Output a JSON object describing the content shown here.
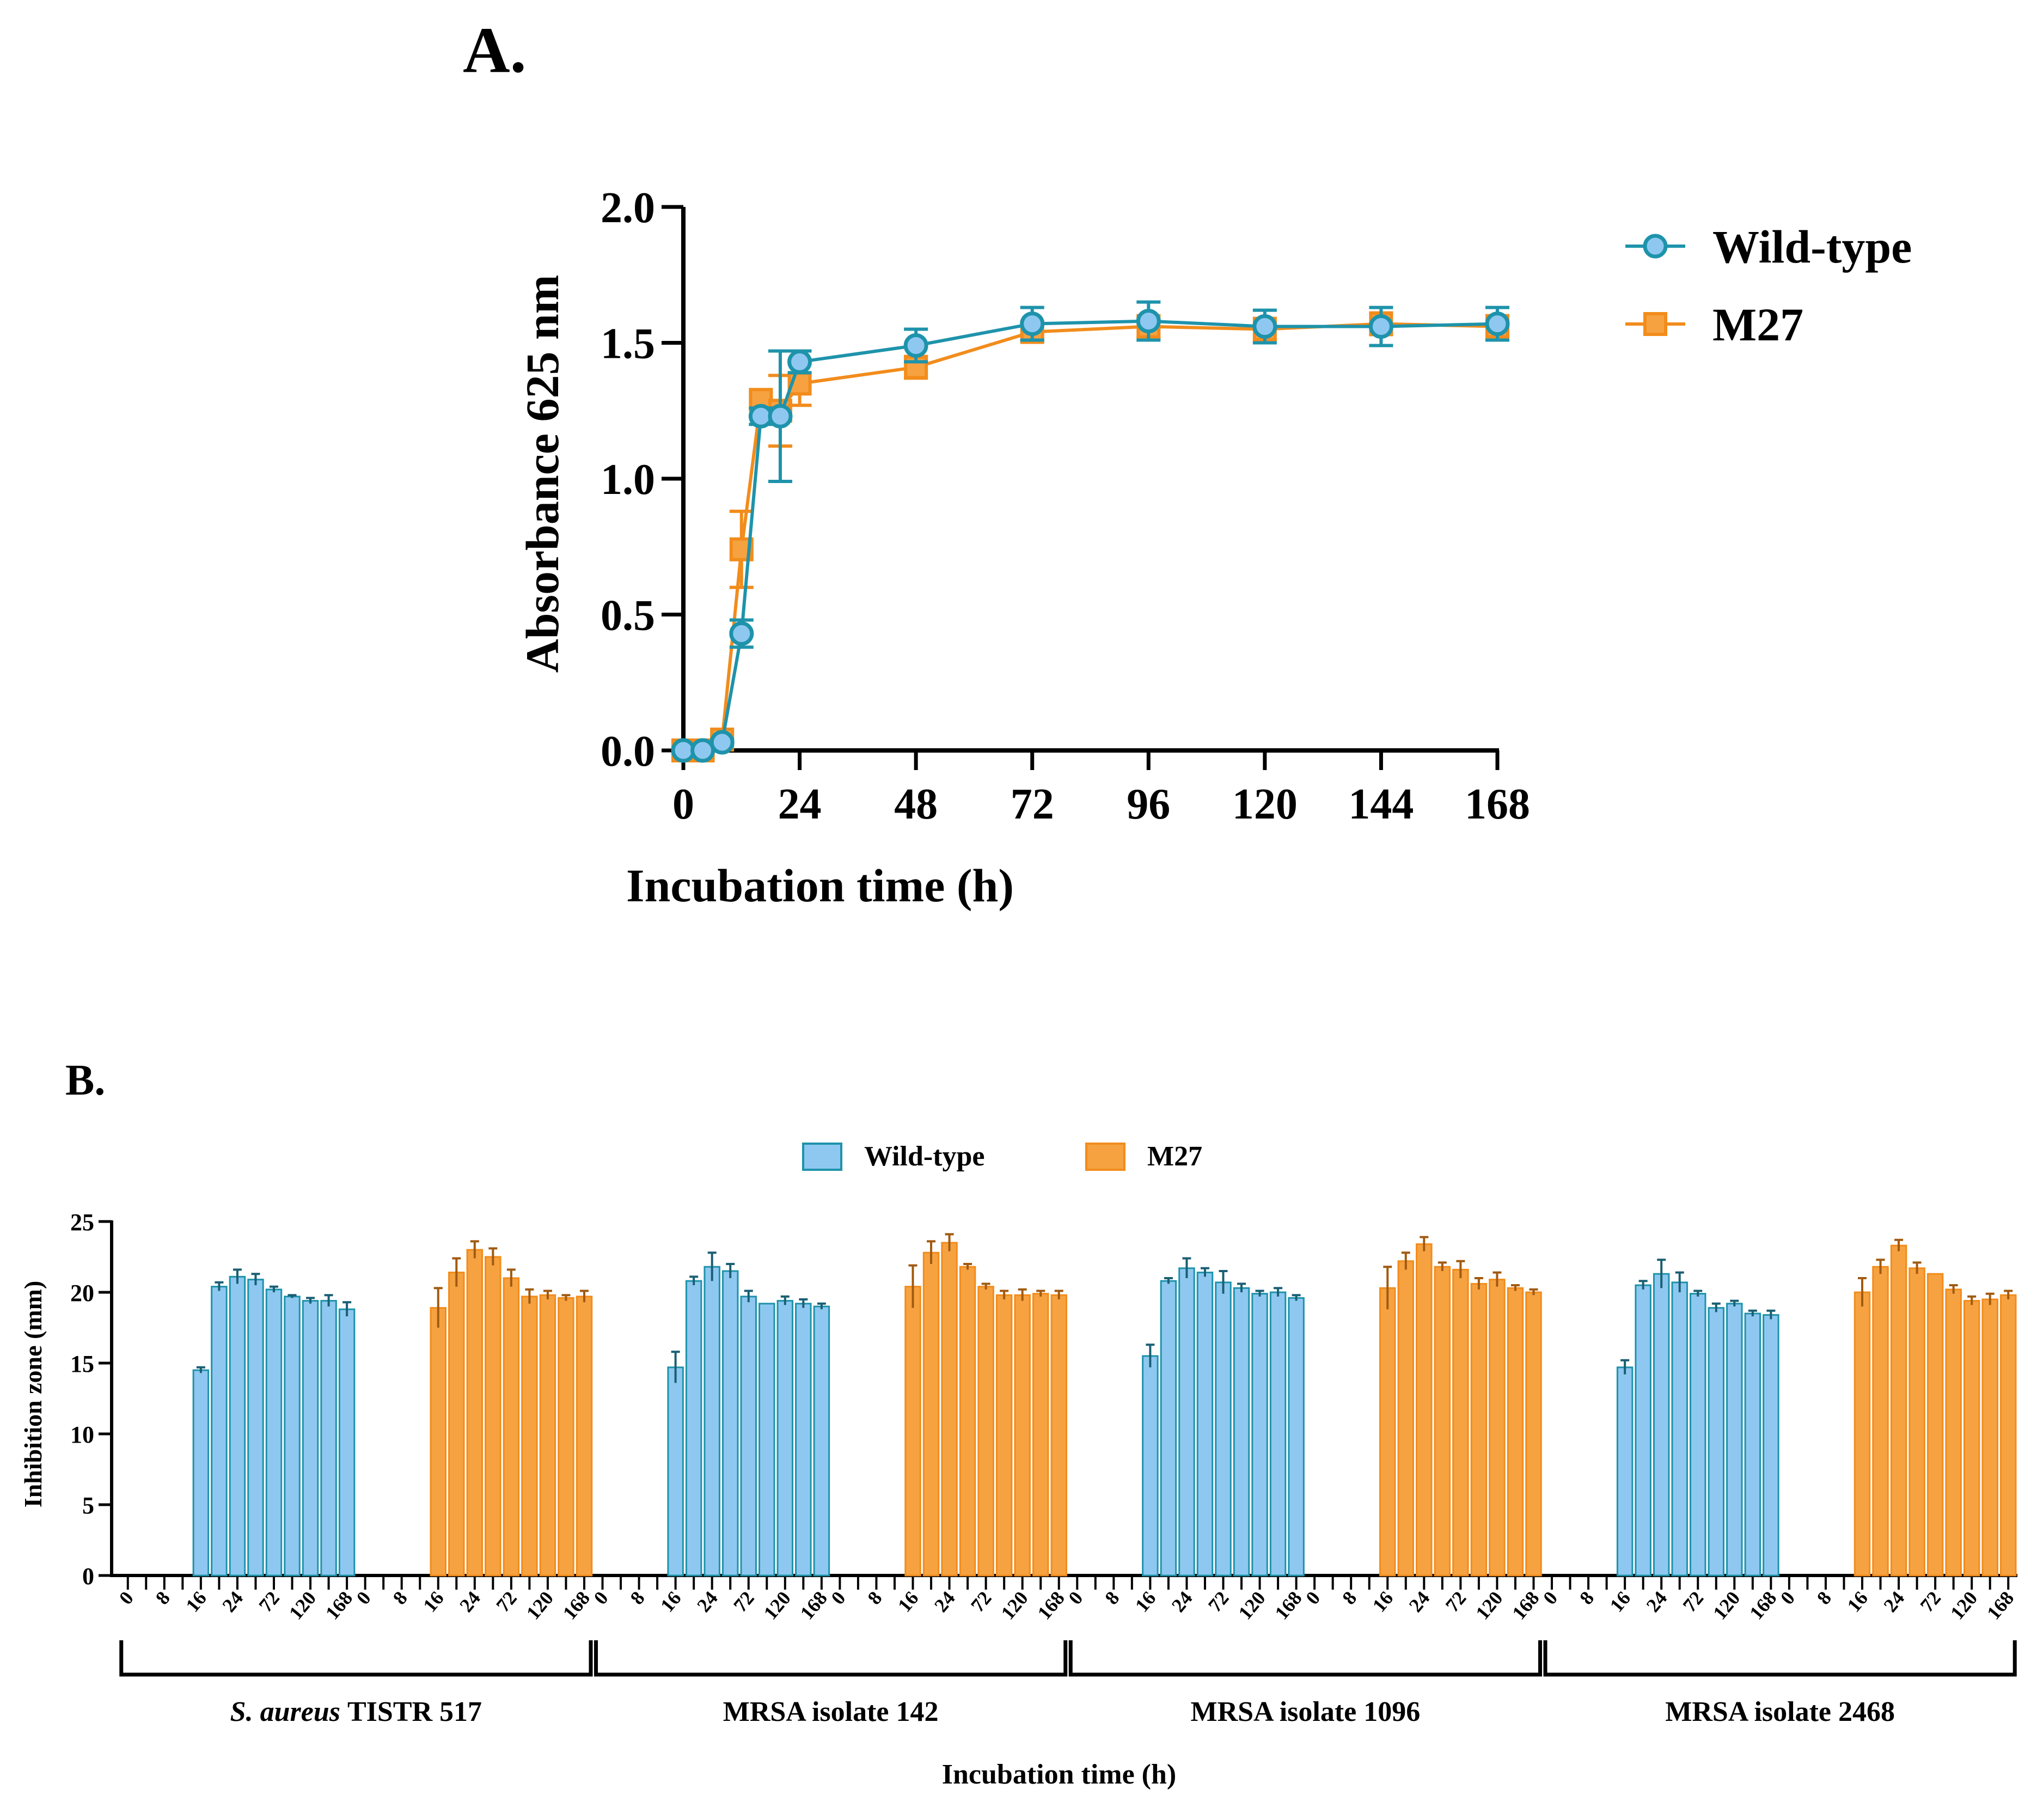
{
  "panel_a_label": "A.",
  "panel_b_label": "B.",
  "colors": {
    "wild_type_line": "#1e93ab",
    "wild_type_fill": "#8ec8f0",
    "m27_line": "#f28c1c",
    "m27_fill": "#f6a241",
    "axis": "#000000"
  },
  "chart_data": [
    {
      "id": "panel-a",
      "type": "line",
      "title": "",
      "xlabel": "Incubation time (h)",
      "ylabel": "Absorbance 625 nm",
      "xlim": [
        0,
        168
      ],
      "ylim": [
        0,
        2.0
      ],
      "xticks": [
        "0",
        "24",
        "48",
        "72",
        "96",
        "120",
        "144",
        "168"
      ],
      "xtick_values": [
        0,
        24,
        48,
        72,
        96,
        120,
        144,
        168
      ],
      "yticks": [
        "0.0",
        "0.5",
        "1.0",
        "1.5",
        "2.0"
      ],
      "ytick_values": [
        0,
        0.5,
        1.0,
        1.5,
        2.0
      ],
      "legend_position": "top-right",
      "series": [
        {
          "name": "Wild-type",
          "marker": "circle",
          "x": [
            0,
            4,
            8,
            12,
            16,
            20,
            24,
            48,
            72,
            96,
            120,
            144,
            168
          ],
          "y": [
            0.0,
            0.0,
            0.03,
            0.43,
            1.23,
            1.23,
            1.43,
            1.49,
            1.57,
            1.58,
            1.56,
            1.56,
            1.57
          ],
          "err": [
            0.01,
            0.01,
            0.01,
            0.05,
            0.03,
            0.24,
            0.04,
            0.06,
            0.06,
            0.07,
            0.06,
            0.07,
            0.06
          ]
        },
        {
          "name": "M27",
          "marker": "square",
          "x": [
            0,
            4,
            8,
            12,
            16,
            20,
            24,
            48,
            72,
            96,
            120,
            144,
            168
          ],
          "y": [
            0.0,
            0.0,
            0.04,
            0.74,
            1.29,
            1.25,
            1.35,
            1.41,
            1.54,
            1.56,
            1.55,
            1.57,
            1.56
          ],
          "err": [
            0.01,
            0.01,
            0.01,
            0.14,
            0.03,
            0.13,
            0.08,
            0.04,
            0.03,
            0.04,
            0.04,
            0.04,
            0.04
          ]
        }
      ]
    },
    {
      "id": "panel-b",
      "type": "bar",
      "title": "",
      "xlabel": "Incubation time (h)",
      "ylabel": "Inhibition zone (mm)",
      "ylim": [
        0,
        25
      ],
      "yticks": [
        "0",
        "5",
        "10",
        "15",
        "20",
        "25"
      ],
      "ytick_values": [
        0,
        5,
        10,
        15,
        20,
        25
      ],
      "legend_position": "top-center",
      "legend": [
        "Wild-type",
        "M27"
      ],
      "time_labels": [
        "0",
        "8",
        "16",
        "24",
        "72",
        "120",
        "168"
      ],
      "time_label_slots": [
        0,
        2,
        4,
        6,
        8,
        10,
        12
      ],
      "slots_per_strain": 13,
      "groups": [
        {
          "label_italic": "S. aureus",
          "label": "TISTR 517",
          "wild_type": {
            "values": [
              0,
              0,
              14.5,
              20.4,
              21.1,
              20.9,
              20.2,
              19.7,
              19.4,
              19.4,
              18.8
            ],
            "err": [
              0,
              0,
              0.2,
              0.3,
              0.5,
              0.4,
              0.2,
              0.1,
              0.2,
              0.4,
              0.5
            ]
          },
          "m27": {
            "values": [
              0,
              0,
              18.9,
              21.4,
              23.0,
              22.5,
              21.0,
              19.7,
              19.8,
              19.6,
              19.7
            ],
            "err": [
              0,
              0,
              1.4,
              1.0,
              0.6,
              0.6,
              0.6,
              0.5,
              0.3,
              0.2,
              0.4
            ]
          }
        },
        {
          "label_italic": "",
          "label": "MRSA isolate 142",
          "wild_type": {
            "values": [
              0,
              0,
              14.7,
              20.8,
              21.8,
              21.5,
              19.7,
              19.2,
              19.4,
              19.2,
              19.0
            ],
            "err": [
              0,
              0,
              1.1,
              0.3,
              1.0,
              0.5,
              0.4,
              0.0,
              0.3,
              0.3,
              0.2
            ]
          },
          "m27": {
            "values": [
              0,
              0,
              20.4,
              22.8,
              23.5,
              21.8,
              20.4,
              19.8,
              19.8,
              19.9,
              19.8
            ],
            "err": [
              0,
              0,
              1.5,
              0.8,
              0.6,
              0.2,
              0.2,
              0.3,
              0.4,
              0.2,
              0.3
            ]
          }
        },
        {
          "label_italic": "",
          "label": "MRSA isolate 1096",
          "wild_type": {
            "values": [
              0,
              0,
              15.5,
              20.8,
              21.7,
              21.4,
              20.7,
              20.3,
              19.9,
              20.0,
              19.6
            ],
            "err": [
              0,
              0,
              0.8,
              0.2,
              0.7,
              0.3,
              0.8,
              0.3,
              0.2,
              0.3,
              0.2
            ]
          },
          "m27": {
            "values": [
              0,
              0,
              20.3,
              22.2,
              23.4,
              21.8,
              21.6,
              20.6,
              20.9,
              20.3,
              20.0
            ],
            "err": [
              0,
              0,
              1.5,
              0.6,
              0.5,
              0.3,
              0.6,
              0.4,
              0.5,
              0.2,
              0.2
            ]
          }
        },
        {
          "label_italic": "",
          "label": "MRSA isolate 2468",
          "wild_type": {
            "values": [
              0,
              0,
              14.7,
              20.5,
              21.3,
              20.7,
              19.9,
              18.9,
              19.2,
              18.5,
              18.4
            ],
            "err": [
              0,
              0,
              0.5,
              0.3,
              1.0,
              0.7,
              0.2,
              0.3,
              0.2,
              0.2,
              0.3
            ]
          },
          "m27": {
            "values": [
              0,
              0,
              20.0,
              21.8,
              23.3,
              21.7,
              21.3,
              20.2,
              19.4,
              19.5,
              19.8
            ],
            "err": [
              0,
              0,
              1.0,
              0.5,
              0.4,
              0.4,
              0.0,
              0.3,
              0.3,
              0.4,
              0.3
            ]
          }
        }
      ]
    }
  ]
}
